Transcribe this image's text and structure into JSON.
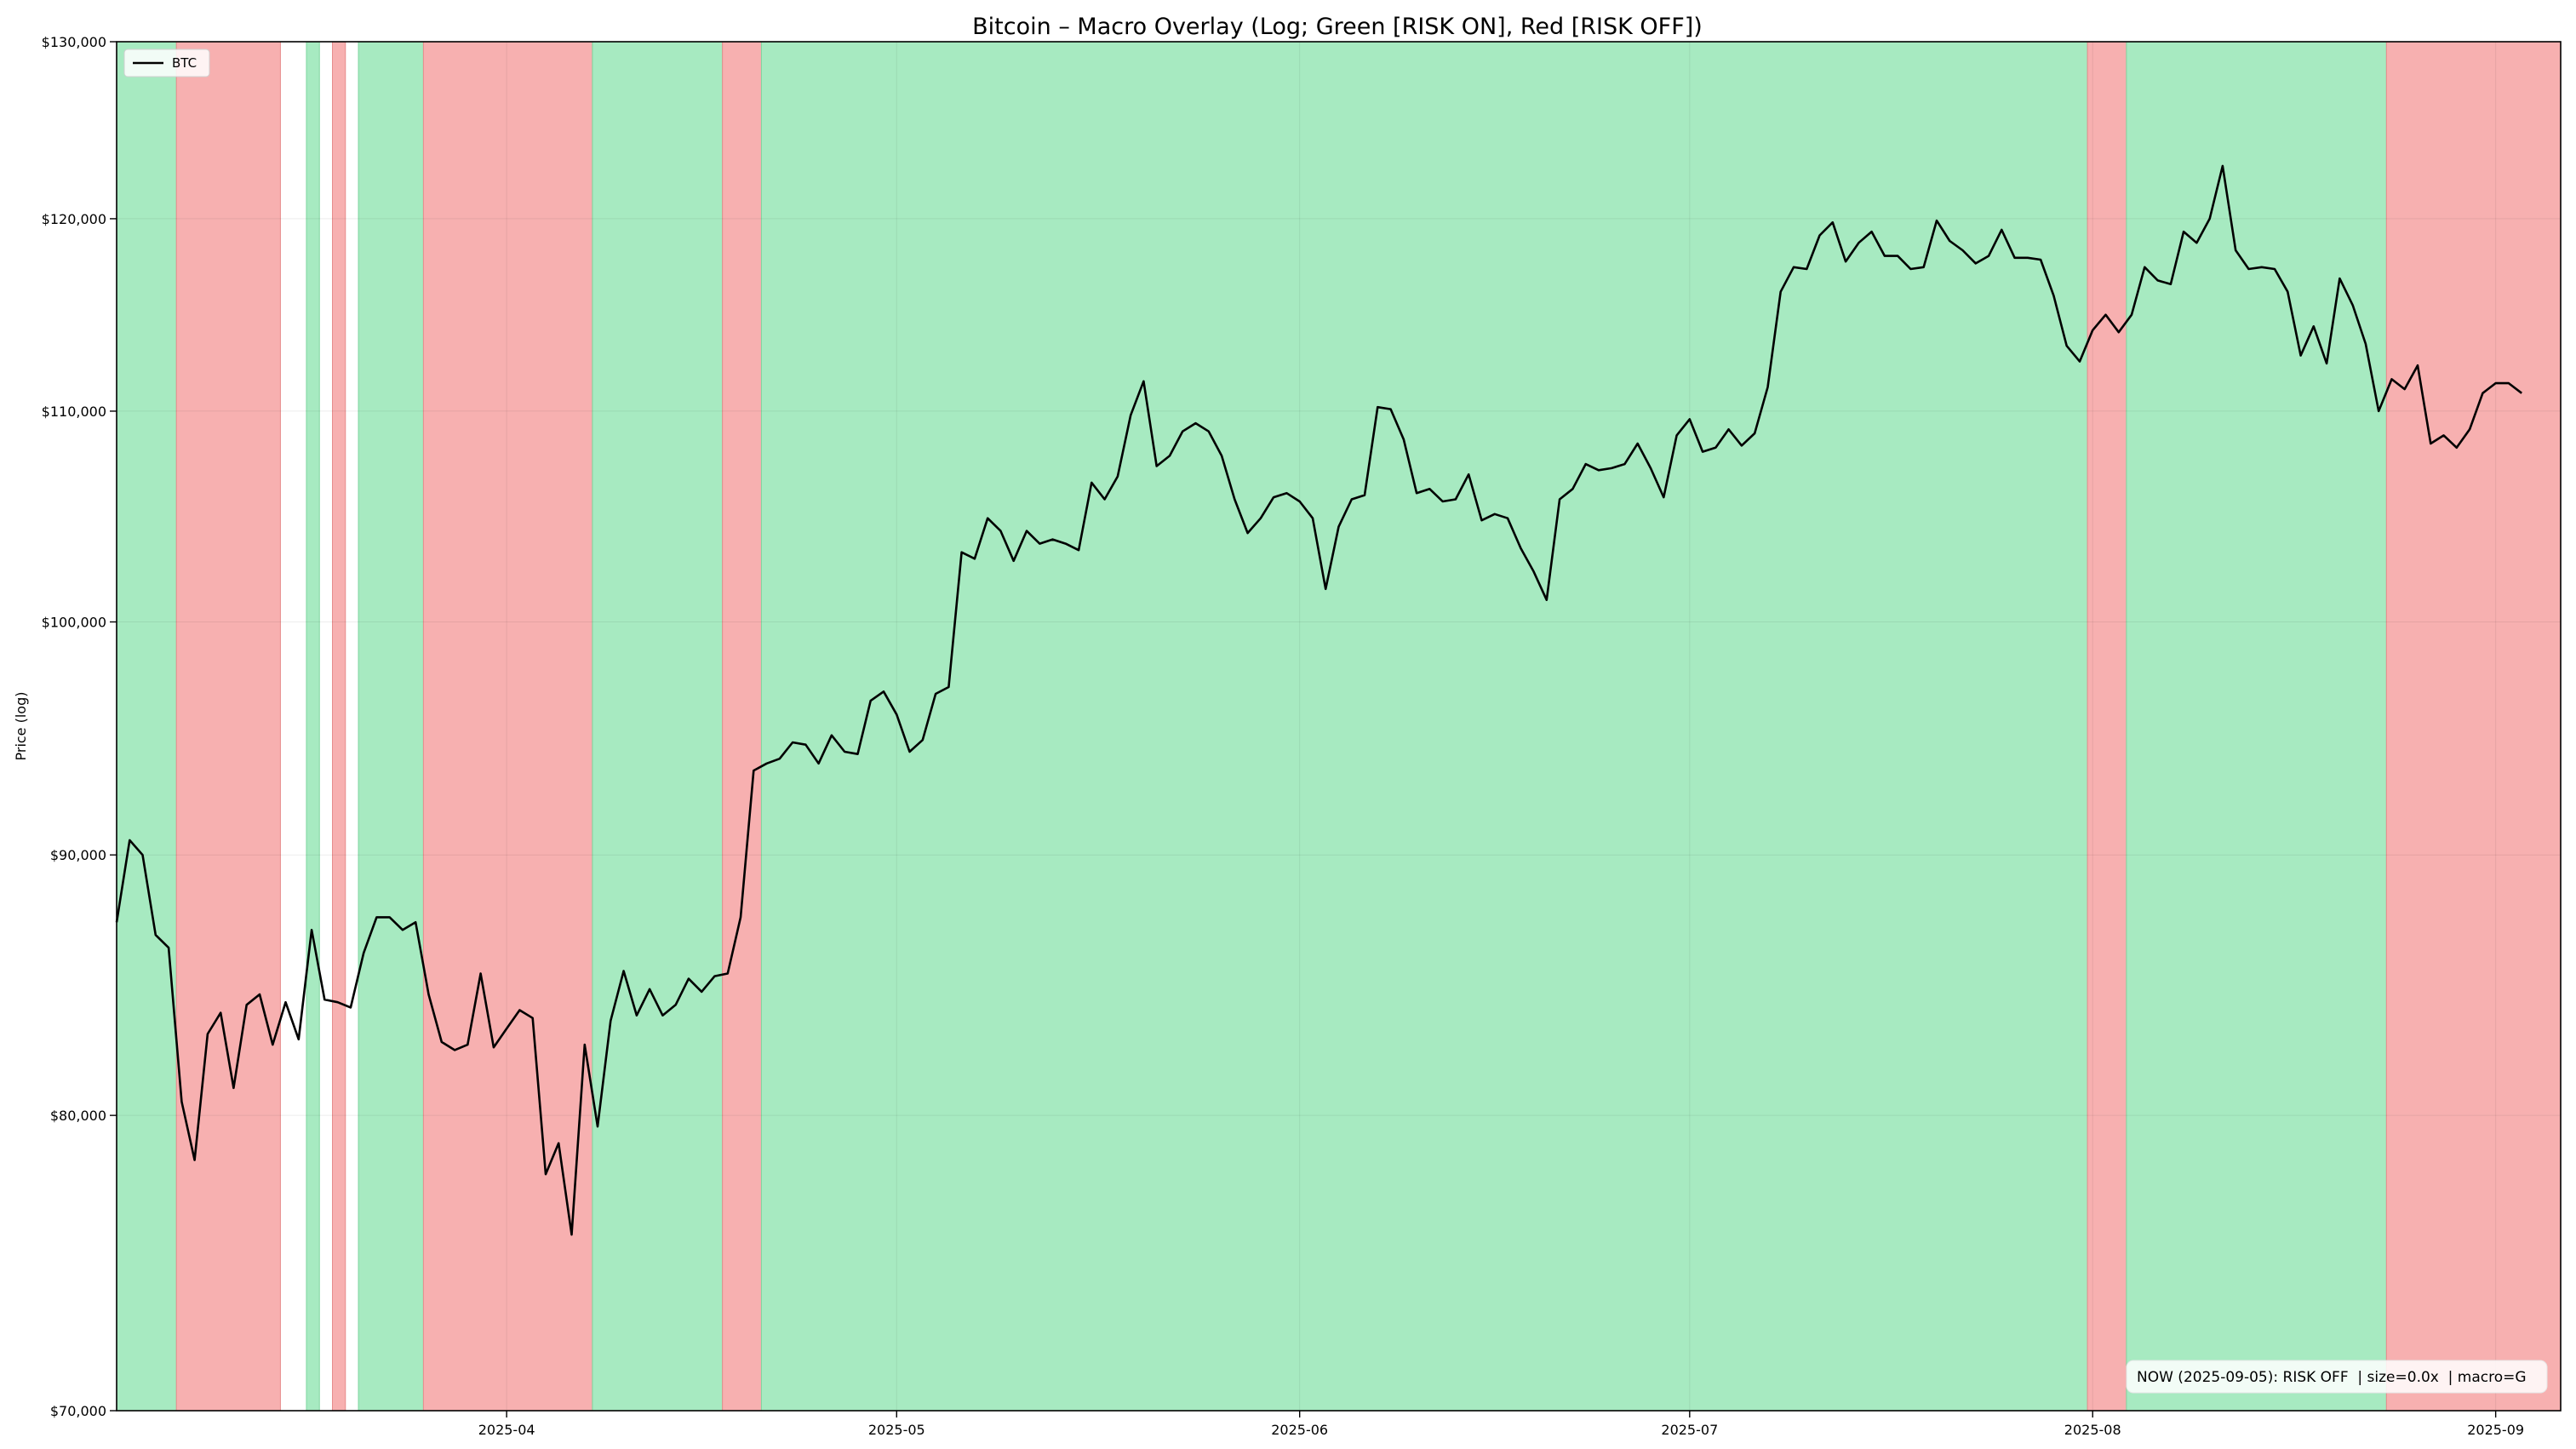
{
  "chart_data": {
    "type": "line",
    "title": "Bitcoin – Macro Overlay (Log; Green [RISK ON], Red [RISK OFF])",
    "ylabel": "Price (log)",
    "xlabel": "",
    "yscale": "log",
    "ylim": [
      70000,
      130000
    ],
    "xlim": [
      "2025-03-02",
      "2025-09-06"
    ],
    "grid": true,
    "legend": {
      "position": "top-left",
      "entries": [
        "BTC"
      ]
    },
    "y_ticks": [
      {
        "value": 70000,
        "label": "$70,000"
      },
      {
        "value": 80000,
        "label": "$80,000"
      },
      {
        "value": 90000,
        "label": "$90,000"
      },
      {
        "value": 100000,
        "label": "$100,000"
      },
      {
        "value": 110000,
        "label": "$110,000"
      },
      {
        "value": 120000,
        "label": "$120,000"
      },
      {
        "value": 130000,
        "label": "$130,000"
      }
    ],
    "x_ticks": [
      {
        "value": "2025-04-01",
        "label": "2025-04"
      },
      {
        "value": "2025-05-01",
        "label": "2025-05"
      },
      {
        "value": "2025-06-01",
        "label": "2025-06"
      },
      {
        "value": "2025-07-01",
        "label": "2025-07"
      },
      {
        "value": "2025-08-01",
        "label": "2025-08"
      },
      {
        "value": "2025-09-01",
        "label": "2025-09"
      }
    ],
    "colors": {
      "risk_on": "#a7eac1",
      "risk_off": "#f7b0b0",
      "line": "#000000"
    },
    "regimes": [
      {
        "start": "2025-03-02",
        "end": "2025-03-06",
        "state": "RISK ON"
      },
      {
        "start": "2025-03-07",
        "end": "2025-03-14",
        "state": "RISK OFF"
      },
      {
        "start": "2025-03-17",
        "end": "2025-03-17",
        "state": "RISK ON"
      },
      {
        "start": "2025-03-19",
        "end": "2025-03-19",
        "state": "RISK OFF"
      },
      {
        "start": "2025-03-21",
        "end": "2025-03-25",
        "state": "RISK ON"
      },
      {
        "start": "2025-03-26",
        "end": "2025-04-07",
        "state": "RISK OFF"
      },
      {
        "start": "2025-04-08",
        "end": "2025-04-17",
        "state": "RISK ON"
      },
      {
        "start": "2025-04-18",
        "end": "2025-04-20",
        "state": "RISK OFF"
      },
      {
        "start": "2025-04-21",
        "end": "2025-07-31",
        "state": "RISK ON"
      },
      {
        "start": "2025-08-01",
        "end": "2025-08-03",
        "state": "RISK OFF"
      },
      {
        "start": "2025-08-04",
        "end": "2025-08-23",
        "state": "RISK ON"
      },
      {
        "start": "2025-08-24",
        "end": "2025-09-06",
        "state": "RISK OFF"
      }
    ],
    "series": [
      {
        "name": "BTC",
        "points": [
          [
            "2025-03-02",
            87300
          ],
          [
            "2025-03-03",
            90600
          ],
          [
            "2025-03-04",
            90000
          ],
          [
            "2025-03-05",
            86800
          ],
          [
            "2025-03-06",
            86300
          ],
          [
            "2025-03-07",
            80500
          ],
          [
            "2025-03-08",
            78400
          ],
          [
            "2025-03-09",
            83000
          ],
          [
            "2025-03-10",
            83800
          ],
          [
            "2025-03-11",
            81000
          ],
          [
            "2025-03-12",
            84100
          ],
          [
            "2025-03-13",
            84500
          ],
          [
            "2025-03-14",
            82600
          ],
          [
            "2025-03-15",
            84200
          ],
          [
            "2025-03-16",
            82800
          ],
          [
            "2025-03-17",
            87000
          ],
          [
            "2025-03-18",
            84300
          ],
          [
            "2025-03-19",
            84200
          ],
          [
            "2025-03-20",
            84000
          ],
          [
            "2025-03-21",
            86100
          ],
          [
            "2025-03-22",
            87500
          ],
          [
            "2025-03-23",
            87500
          ],
          [
            "2025-03-24",
            87000
          ],
          [
            "2025-03-25",
            87300
          ],
          [
            "2025-03-26",
            84500
          ],
          [
            "2025-03-27",
            82700
          ],
          [
            "2025-03-28",
            82400
          ],
          [
            "2025-03-29",
            82600
          ],
          [
            "2025-03-30",
            85300
          ],
          [
            "2025-03-31",
            82500
          ],
          [
            "2025-04-01",
            83200
          ],
          [
            "2025-04-02",
            83900
          ],
          [
            "2025-04-03",
            83600
          ],
          [
            "2025-04-04",
            77900
          ],
          [
            "2025-04-05",
            79000
          ],
          [
            "2025-04-06",
            75800
          ],
          [
            "2025-04-07",
            82600
          ],
          [
            "2025-04-08",
            79600
          ],
          [
            "2025-04-09",
            83500
          ],
          [
            "2025-04-10",
            85400
          ],
          [
            "2025-04-11",
            83700
          ],
          [
            "2025-04-12",
            84700
          ],
          [
            "2025-04-13",
            83700
          ],
          [
            "2025-04-14",
            84100
          ],
          [
            "2025-04-15",
            85100
          ],
          [
            "2025-04-16",
            84600
          ],
          [
            "2025-04-17",
            85200
          ],
          [
            "2025-04-18",
            85300
          ],
          [
            "2025-04-19",
            87500
          ],
          [
            "2025-04-20",
            93500
          ],
          [
            "2025-04-21",
            93800
          ],
          [
            "2025-04-22",
            94000
          ],
          [
            "2025-04-23",
            94700
          ],
          [
            "2025-04-24",
            94600
          ],
          [
            "2025-04-25",
            93800
          ],
          [
            "2025-04-26",
            95000
          ],
          [
            "2025-04-27",
            94300
          ],
          [
            "2025-04-28",
            94200
          ],
          [
            "2025-04-29",
            96500
          ],
          [
            "2025-04-30",
            96900
          ],
          [
            "2025-05-01",
            95900
          ],
          [
            "2025-05-02",
            94300
          ],
          [
            "2025-05-03",
            94800
          ],
          [
            "2025-05-04",
            96800
          ],
          [
            "2025-05-05",
            97100
          ],
          [
            "2025-05-06",
            103200
          ],
          [
            "2025-05-07",
            102900
          ],
          [
            "2025-05-08",
            104800
          ],
          [
            "2025-05-09",
            104200
          ],
          [
            "2025-05-10",
            102800
          ],
          [
            "2025-05-11",
            104200
          ],
          [
            "2025-05-12",
            103600
          ],
          [
            "2025-05-13",
            103800
          ],
          [
            "2025-05-14",
            103600
          ],
          [
            "2025-05-15",
            103300
          ],
          [
            "2025-05-16",
            106500
          ],
          [
            "2025-05-17",
            105700
          ],
          [
            "2025-05-18",
            106800
          ],
          [
            "2025-05-19",
            109800
          ],
          [
            "2025-05-20",
            111500
          ],
          [
            "2025-05-21",
            107300
          ],
          [
            "2025-05-22",
            107800
          ],
          [
            "2025-05-23",
            109000
          ],
          [
            "2025-05-24",
            109400
          ],
          [
            "2025-05-25",
            109000
          ],
          [
            "2025-05-26",
            107800
          ],
          [
            "2025-05-27",
            105700
          ],
          [
            "2025-05-28",
            104100
          ],
          [
            "2025-05-29",
            104800
          ],
          [
            "2025-05-30",
            105800
          ],
          [
            "2025-05-31",
            106000
          ],
          [
            "2025-06-01",
            105600
          ],
          [
            "2025-06-02",
            104800
          ],
          [
            "2025-06-03",
            101500
          ],
          [
            "2025-06-04",
            104400
          ],
          [
            "2025-06-05",
            105700
          ],
          [
            "2025-06-06",
            105900
          ],
          [
            "2025-06-07",
            110200
          ],
          [
            "2025-06-08",
            110100
          ],
          [
            "2025-06-09",
            108600
          ],
          [
            "2025-06-10",
            106000
          ],
          [
            "2025-06-11",
            106200
          ],
          [
            "2025-06-12",
            105600
          ],
          [
            "2025-06-13",
            105700
          ],
          [
            "2025-06-14",
            106900
          ],
          [
            "2025-06-15",
            104700
          ],
          [
            "2025-06-16",
            105000
          ],
          [
            "2025-06-17",
            104800
          ],
          [
            "2025-06-18",
            103400
          ],
          [
            "2025-06-19",
            102300
          ],
          [
            "2025-06-20",
            101000
          ],
          [
            "2025-06-21",
            105700
          ],
          [
            "2025-06-22",
            106200
          ],
          [
            "2025-06-23",
            107400
          ],
          [
            "2025-06-24",
            107100
          ],
          [
            "2025-06-25",
            107200
          ],
          [
            "2025-06-26",
            107400
          ],
          [
            "2025-06-27",
            108400
          ],
          [
            "2025-06-28",
            107200
          ],
          [
            "2025-06-29",
            105800
          ],
          [
            "2025-06-30",
            108800
          ],
          [
            "2025-07-01",
            109600
          ],
          [
            "2025-07-02",
            108000
          ],
          [
            "2025-07-03",
            108200
          ],
          [
            "2025-07-04",
            109100
          ],
          [
            "2025-07-05",
            108300
          ],
          [
            "2025-07-06",
            108900
          ],
          [
            "2025-07-07",
            111200
          ],
          [
            "2025-07-08",
            116100
          ],
          [
            "2025-07-09",
            117400
          ],
          [
            "2025-07-10",
            117300
          ],
          [
            "2025-07-11",
            119100
          ],
          [
            "2025-07-12",
            119800
          ],
          [
            "2025-07-13",
            117700
          ],
          [
            "2025-07-14",
            118700
          ],
          [
            "2025-07-15",
            119300
          ],
          [
            "2025-07-16",
            118000
          ],
          [
            "2025-07-17",
            118000
          ],
          [
            "2025-07-18",
            117300
          ],
          [
            "2025-07-19",
            117400
          ],
          [
            "2025-07-20",
            119900
          ],
          [
            "2025-07-21",
            118800
          ],
          [
            "2025-07-22",
            118300
          ],
          [
            "2025-07-23",
            117600
          ],
          [
            "2025-07-24",
            118000
          ],
          [
            "2025-07-25",
            119400
          ],
          [
            "2025-07-26",
            117900
          ],
          [
            "2025-07-27",
            117900
          ],
          [
            "2025-07-28",
            117800
          ],
          [
            "2025-07-29",
            115900
          ],
          [
            "2025-07-30",
            113300
          ],
          [
            "2025-07-31",
            112500
          ],
          [
            "2025-08-01",
            114100
          ],
          [
            "2025-08-02",
            114900
          ],
          [
            "2025-08-03",
            114000
          ],
          [
            "2025-08-04",
            114900
          ],
          [
            "2025-08-05",
            117400
          ],
          [
            "2025-08-06",
            116700
          ],
          [
            "2025-08-07",
            116500
          ],
          [
            "2025-08-08",
            119300
          ],
          [
            "2025-08-09",
            118700
          ],
          [
            "2025-08-10",
            120000
          ],
          [
            "2025-08-11",
            122900
          ],
          [
            "2025-08-12",
            118300
          ],
          [
            "2025-08-13",
            117300
          ],
          [
            "2025-08-14",
            117400
          ],
          [
            "2025-08-15",
            117300
          ],
          [
            "2025-08-16",
            116100
          ],
          [
            "2025-08-17",
            112800
          ],
          [
            "2025-08-18",
            114300
          ],
          [
            "2025-08-19",
            112400
          ],
          [
            "2025-08-20",
            116800
          ],
          [
            "2025-08-21",
            115400
          ],
          [
            "2025-08-22",
            113400
          ],
          [
            "2025-08-23",
            110000
          ],
          [
            "2025-08-24",
            111600
          ],
          [
            "2025-08-25",
            111100
          ],
          [
            "2025-08-26",
            112300
          ],
          [
            "2025-08-27",
            108400
          ],
          [
            "2025-08-28",
            108800
          ],
          [
            "2025-08-29",
            108200
          ],
          [
            "2025-08-30",
            109100
          ],
          [
            "2025-08-31",
            110900
          ],
          [
            "2025-09-01",
            111400
          ],
          [
            "2025-09-02",
            111400
          ],
          [
            "2025-09-03",
            110900
          ]
        ]
      }
    ],
    "status_box": {
      "text": "NOW (2025-09-05): RISK OFF  | size=0.0x  | macro=G",
      "position": "bottom-right"
    }
  }
}
